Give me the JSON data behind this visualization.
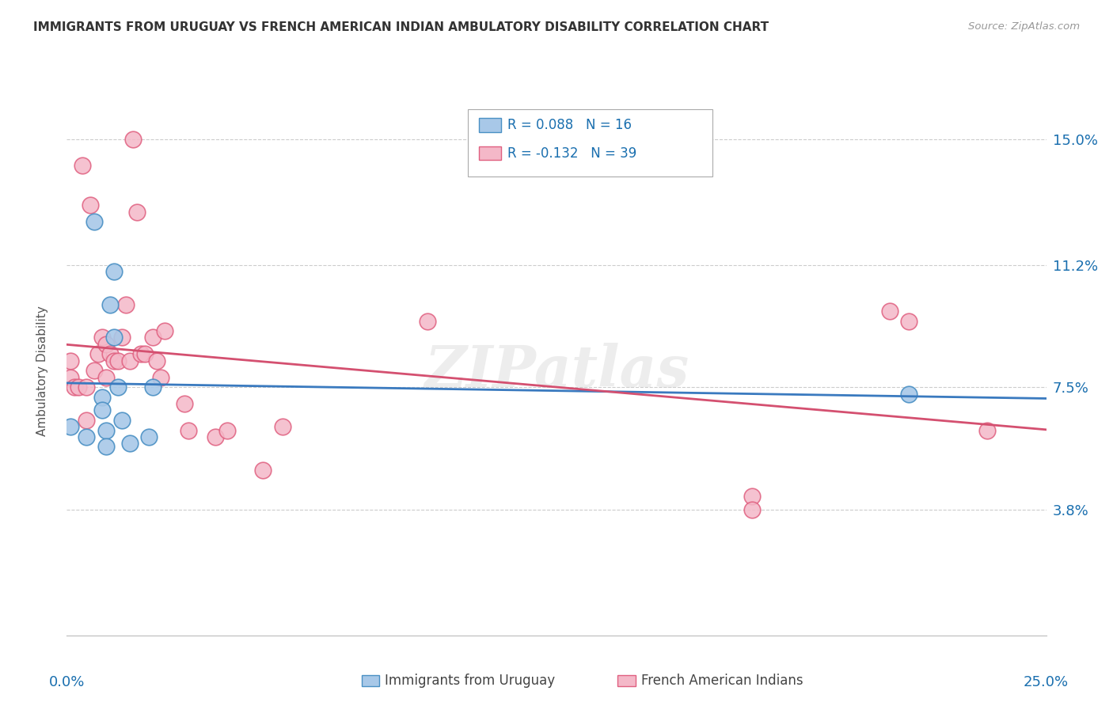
{
  "title": "IMMIGRANTS FROM URUGUAY VS FRENCH AMERICAN INDIAN AMBULATORY DISABILITY CORRELATION CHART",
  "source": "Source: ZipAtlas.com",
  "ylabel": "Ambulatory Disability",
  "yticks": [
    "3.8%",
    "7.5%",
    "11.2%",
    "15.0%"
  ],
  "ytick_vals": [
    0.038,
    0.075,
    0.112,
    0.15
  ],
  "xmin": 0.0,
  "xmax": 0.25,
  "ymin": 0.0,
  "ymax": 0.16,
  "legend_r_blue": "R = 0.088",
  "legend_n_blue": "N = 16",
  "legend_r_pink": "R = -0.132",
  "legend_n_pink": "N = 39",
  "blue_color": "#a8c8e8",
  "pink_color": "#f4b8c8",
  "blue_edge_color": "#4a90c4",
  "pink_edge_color": "#e06080",
  "blue_line_color": "#3a7abf",
  "pink_line_color": "#d45070",
  "watermark": "ZIPatlas",
  "blue_points_x": [
    0.001,
    0.005,
    0.007,
    0.009,
    0.009,
    0.01,
    0.01,
    0.011,
    0.012,
    0.012,
    0.013,
    0.014,
    0.016,
    0.021,
    0.022,
    0.215
  ],
  "blue_points_y": [
    0.063,
    0.06,
    0.125,
    0.072,
    0.068,
    0.062,
    0.057,
    0.1,
    0.09,
    0.11,
    0.075,
    0.065,
    0.058,
    0.06,
    0.075,
    0.073
  ],
  "pink_points_x": [
    0.001,
    0.001,
    0.002,
    0.003,
    0.004,
    0.005,
    0.005,
    0.006,
    0.007,
    0.008,
    0.009,
    0.01,
    0.01,
    0.011,
    0.012,
    0.013,
    0.014,
    0.015,
    0.016,
    0.017,
    0.018,
    0.019,
    0.02,
    0.022,
    0.023,
    0.024,
    0.025,
    0.03,
    0.031,
    0.038,
    0.041,
    0.05,
    0.055,
    0.092,
    0.175,
    0.175,
    0.21,
    0.215,
    0.235
  ],
  "pink_points_y": [
    0.078,
    0.083,
    0.075,
    0.075,
    0.142,
    0.075,
    0.065,
    0.13,
    0.08,
    0.085,
    0.09,
    0.088,
    0.078,
    0.085,
    0.083,
    0.083,
    0.09,
    0.1,
    0.083,
    0.15,
    0.128,
    0.085,
    0.085,
    0.09,
    0.083,
    0.078,
    0.092,
    0.07,
    0.062,
    0.06,
    0.062,
    0.05,
    0.063,
    0.095,
    0.042,
    0.038,
    0.098,
    0.095,
    0.062
  ]
}
